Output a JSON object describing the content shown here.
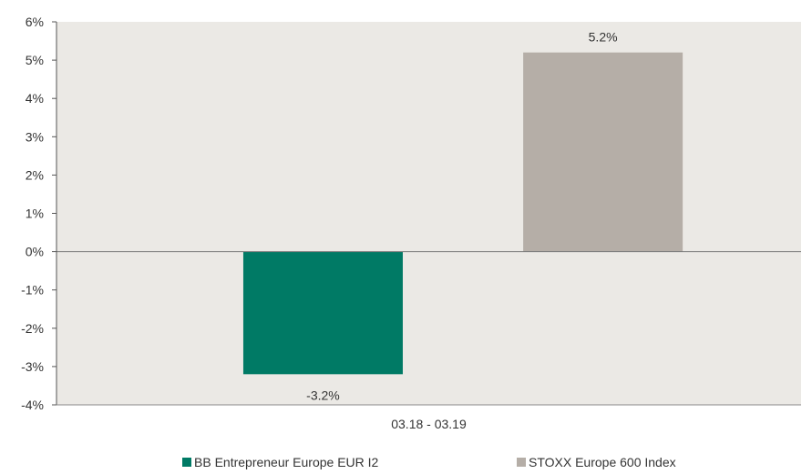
{
  "chart_data": {
    "type": "bar",
    "title": "",
    "xlabel": "",
    "ylabel": "",
    "categories": [
      "03.18 - 03.19"
    ],
    "series": [
      {
        "name": "BB Entrepreneur Europe EUR I2",
        "values": [
          -3.2
        ],
        "color": "#007a65",
        "data_label": "-3.2%"
      },
      {
        "name": "STOXX Europe 600 Index",
        "values": [
          5.2
        ],
        "color": "#b5aea7",
        "data_label": "5.2%"
      }
    ],
    "ylim": [
      -4,
      6
    ],
    "y_ticks": [
      "6%",
      "5%",
      "4%",
      "3%",
      "2%",
      "1%",
      "0%",
      "-1%",
      "-2%",
      "-3%",
      "-4%"
    ],
    "y_tick_values": [
      6,
      5,
      4,
      3,
      2,
      1,
      0,
      -1,
      -2,
      -3,
      -4
    ],
    "plot_background": "#ebe9e5",
    "grid": false,
    "legend_position": "bottom"
  }
}
